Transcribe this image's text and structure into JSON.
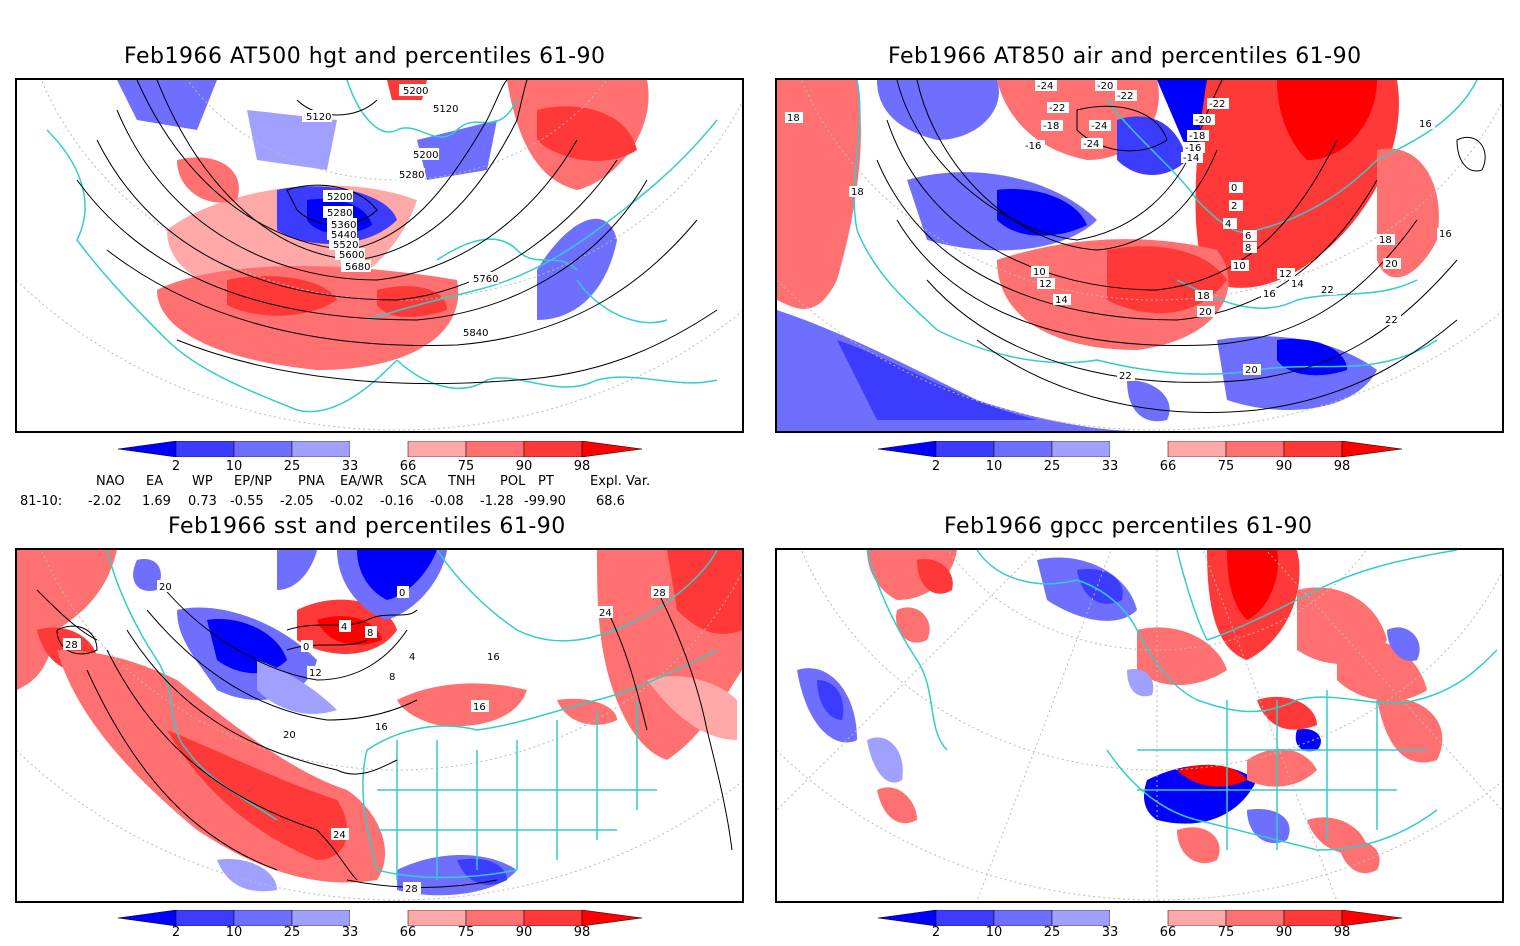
{
  "panels": [
    {
      "id": "p1",
      "title": "Feb1966 AT500 hgt and percentiles 61-90",
      "contour_labels": [
        "5200",
        "5120",
        "5120",
        "5200",
        "5280",
        "5200",
        "5280",
        "5360",
        "5440",
        "5520",
        "5600",
        "5680",
        "5760",
        "5840"
      ]
    },
    {
      "id": "p2",
      "title": "Feb1966 AT850 air and percentiles 61-90",
      "contour_labels": [
        "-24",
        "-20",
        "-22",
        "-22",
        "-24",
        "-22",
        "-18",
        "-24",
        "-16",
        "-20",
        "-18",
        "-16",
        "-14",
        "0",
        "2",
        "4",
        "6",
        "8",
        "10",
        "10",
        "12",
        "12",
        "14",
        "14",
        "16",
        "16",
        "16",
        "18",
        "18",
        "18",
        "18",
        "20",
        "20",
        "20",
        "22",
        "22",
        "22"
      ]
    },
    {
      "id": "p3",
      "title": "Feb1966 sst and percentiles 61-90",
      "contour_labels": [
        "20",
        "24",
        "28",
        "28",
        "0",
        "4",
        "8",
        "12",
        "16",
        "16",
        "16",
        "20",
        "24",
        "28",
        "4",
        "8",
        "0"
      ]
    },
    {
      "id": "p4",
      "title": "Feb1966 gpcc percentiles 61-90",
      "contour_labels": []
    }
  ],
  "colorbar": {
    "ticks": [
      "2",
      "10",
      "25",
      "33",
      "66",
      "75",
      "90",
      "98"
    ],
    "colors": [
      "#0000ff",
      "#3c3cff",
      "#6e6eff",
      "#a0a0ff",
      "#ffffff",
      "#ffa8a8",
      "#ff7070",
      "#ff3838",
      "#ff0000"
    ]
  },
  "indices": {
    "headers": [
      "NAO",
      "EA",
      "WP",
      "EP/NP",
      "PNA",
      "EA/WR",
      "SCA",
      "TNH",
      "POL",
      "PT",
      "Expl. Var."
    ],
    "row_label": "81-10:",
    "values": [
      "-2.02",
      "1.69",
      "0.73",
      "-0.55",
      "-2.05",
      "-0.02",
      "-0.16",
      "-0.08",
      "-1.28",
      "-99.90",
      "68.6"
    ]
  },
  "colors": {
    "land_outline": "#33cccc",
    "contour": "#000000"
  }
}
